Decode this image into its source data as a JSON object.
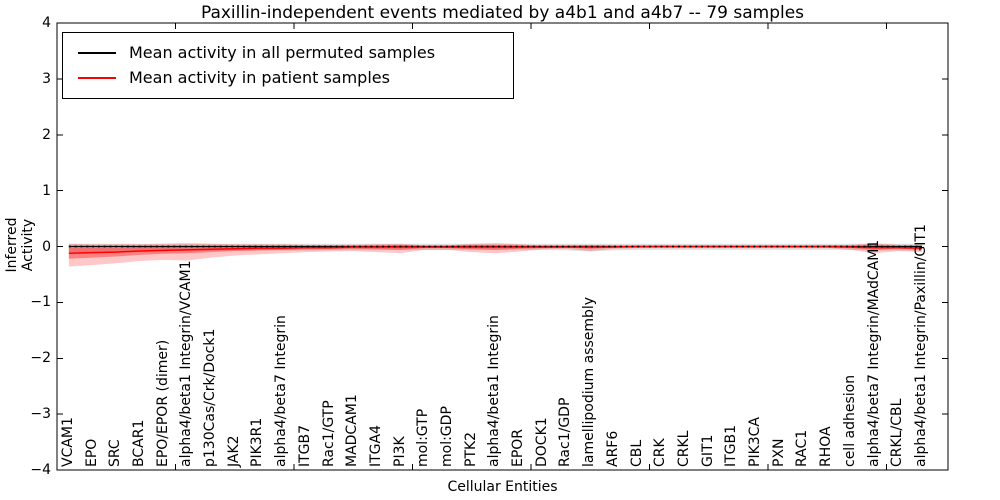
{
  "chart_data": {
    "type": "line",
    "title": "Paxillin-independent events mediated by a4b1 and a4b7 -- 79 samples",
    "xlabel": "Cellular Entities",
    "ylabel": "Inferred Activity",
    "ylim": [
      -4,
      4
    ],
    "y_tick_values": [
      4,
      3,
      2,
      1,
      0,
      -1,
      -2,
      -3,
      -4
    ],
    "y_tick_labels": [
      "4",
      "3",
      "2",
      "1",
      "0",
      "−1",
      "−2",
      "−3",
      "−4"
    ],
    "x_major_ticks": [
      0,
      5,
      10,
      15,
      20,
      25,
      30,
      35
    ],
    "grid": false,
    "legend_position": "upper left",
    "categories": [
      "VCAM1",
      "EPO",
      "SRC",
      "BCAR1",
      "EPO/EPOR (dimer)",
      "alpha4/beta1 Integrin/VCAM1",
      "p130Cas/Crk/Dock1",
      "JAK2",
      "PIK3R1",
      "alpha4/beta7 Integrin",
      "ITGB7",
      "Rac1/GTP",
      "MADCAM1",
      "ITGA4",
      "PI3K",
      "mol:GTP",
      "mol:GDP",
      "PTK2",
      "alpha4/beta1 Integrin",
      "EPOR",
      "DOCK1",
      "Rac1/GDP",
      "lamellipodium assembly",
      "ARF6",
      "CBL",
      "CRK",
      "CRKL",
      "GIT1",
      "ITGB1",
      "PIK3CA",
      "PXN",
      "RAC1",
      "RHOA",
      "cell adhesion",
      "alpha4/beta7 Integrin/MAdCAM1",
      "CRKL/CBL",
      "alpha4/beta1 Integrin/Paxillin/GIT1"
    ],
    "series": [
      {
        "name": "Mean activity in all permuted samples",
        "color": "#000000",
        "style": "solid",
        "values": [
          0,
          0,
          0,
          0,
          0,
          0,
          0,
          0,
          0,
          0,
          0,
          0,
          0,
          0,
          0,
          0,
          0,
          0,
          0,
          0,
          0,
          0,
          0,
          0,
          0,
          0,
          0,
          0,
          0,
          0,
          0,
          0,
          0,
          0,
          0,
          0,
          0
        ]
      },
      {
        "name": "Mean activity in patient samples",
        "color": "#ff0000",
        "style": "solid",
        "values": [
          -0.12,
          -0.11,
          -0.1,
          -0.08,
          -0.07,
          -0.06,
          -0.05,
          -0.04,
          -0.03,
          -0.03,
          -0.02,
          -0.02,
          -0.01,
          -0.01,
          -0.01,
          -0.01,
          -0.01,
          -0.01,
          -0.01,
          -0.01,
          -0.01,
          -0.01,
          -0.01,
          -0.01,
          0,
          0,
          0,
          0,
          0,
          0,
          0,
          0,
          0,
          -0.01,
          -0.02,
          -0.02,
          -0.03
        ]
      }
    ],
    "bands": [
      {
        "name": "permuted-spread",
        "color": "#808080",
        "opacity": 0.25,
        "upper": [
          0.05,
          0.05,
          0.05,
          0.05,
          0.05,
          0.05,
          0.05,
          0.05,
          0.05,
          0.05,
          0.05,
          0.05,
          0.05,
          0.05,
          0.05,
          0.05,
          0.05,
          0.05,
          0.05,
          0.05,
          0.05,
          0.05,
          0.05,
          0.05,
          0.05,
          0.05,
          0.05,
          0.05,
          0.05,
          0.05,
          0.05,
          0.05,
          0.05,
          0.05,
          0.05,
          0.05,
          0.05
        ],
        "lower": [
          -0.1,
          -0.1,
          -0.09,
          -0.09,
          -0.08,
          -0.08,
          -0.08,
          -0.07,
          -0.07,
          -0.07,
          -0.07,
          -0.06,
          -0.06,
          -0.06,
          -0.06,
          -0.06,
          -0.06,
          -0.06,
          -0.06,
          -0.06,
          -0.06,
          -0.07,
          -0.09,
          -0.07,
          -0.06,
          -0.06,
          -0.06,
          -0.06,
          -0.06,
          -0.06,
          -0.06,
          -0.06,
          -0.06,
          -0.06,
          -0.07,
          -0.07,
          -0.07
        ]
      },
      {
        "name": "patient-spread-outer",
        "color": "#ff0000",
        "opacity": 0.22,
        "upper": [
          0.05,
          0.04,
          0.04,
          0.04,
          0.05,
          0.06,
          0.05,
          0.04,
          0.04,
          0.04,
          0.03,
          0.03,
          0.03,
          0.04,
          0.05,
          0.02,
          0.02,
          0.05,
          0.06,
          0.04,
          0.02,
          0.02,
          0.03,
          0.02,
          0.01,
          0.01,
          0.01,
          0.01,
          0.01,
          0.01,
          0.01,
          0.01,
          0.02,
          0.03,
          0.06,
          0.03,
          0.03
        ],
        "lower": [
          -0.36,
          -0.33,
          -0.3,
          -0.26,
          -0.24,
          -0.25,
          -0.2,
          -0.16,
          -0.14,
          -0.12,
          -0.1,
          -0.09,
          -0.08,
          -0.1,
          -0.12,
          -0.06,
          -0.06,
          -0.1,
          -0.12,
          -0.09,
          -0.05,
          -0.04,
          -0.08,
          -0.04,
          -0.03,
          -0.03,
          -0.03,
          -0.03,
          -0.03,
          -0.03,
          -0.03,
          -0.03,
          -0.03,
          -0.06,
          -0.12,
          -0.08,
          -0.1
        ]
      },
      {
        "name": "patient-spread-inner",
        "color": "#ff0000",
        "opacity": 0.35,
        "upper": [
          -0.02,
          -0.02,
          -0.02,
          -0.01,
          -0.01,
          0,
          0,
          0,
          0,
          0,
          0,
          0.01,
          0.01,
          0.01,
          0.02,
          0.01,
          0.01,
          0.02,
          0.02,
          0.01,
          0.01,
          0.01,
          0.01,
          0.01,
          0.01,
          0.01,
          0.01,
          0.01,
          0.01,
          0.01,
          0.01,
          0.01,
          0.01,
          0.01,
          0.02,
          0.01,
          0.01
        ],
        "lower": [
          -0.22,
          -0.2,
          -0.18,
          -0.15,
          -0.13,
          -0.12,
          -0.1,
          -0.08,
          -0.07,
          -0.06,
          -0.05,
          -0.05,
          -0.04,
          -0.05,
          -0.06,
          -0.03,
          -0.03,
          -0.05,
          -0.06,
          -0.04,
          -0.03,
          -0.02,
          -0.04,
          -0.02,
          -0.02,
          -0.01,
          -0.01,
          -0.01,
          -0.01,
          -0.01,
          -0.01,
          -0.01,
          -0.02,
          -0.03,
          -0.06,
          -0.04,
          -0.06
        ]
      }
    ],
    "zero_line": {
      "value": 0,
      "color": "#000000",
      "style": "dotted"
    },
    "legend": [
      {
        "label": "Mean activity in all permuted samples",
        "color": "#000000"
      },
      {
        "label": "Mean activity in patient samples",
        "color": "#ff0000"
      }
    ]
  }
}
